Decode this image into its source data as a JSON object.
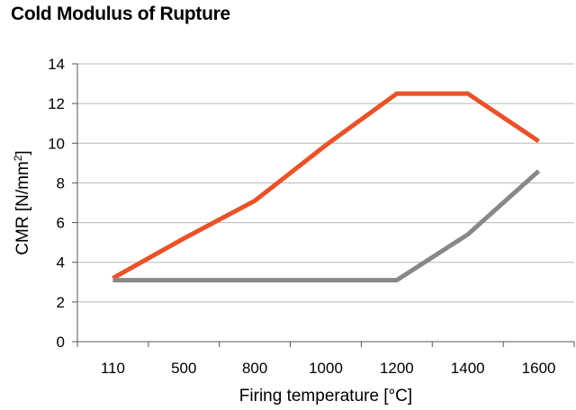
{
  "chart_data": {
    "type": "line",
    "title": "Cold Modulus of Rupture",
    "xlabel": "Firing temperature  [°C]",
    "ylabel_main": "CMR [N/mm",
    "ylabel_sup": "2",
    "ylabel_end": "]",
    "categories": [
      "110",
      "500",
      "800",
      "1000",
      "1200",
      "1400",
      "1600"
    ],
    "ylim": [
      0,
      14
    ],
    "yticks": [
      0,
      2,
      4,
      6,
      8,
      10,
      12,
      14
    ],
    "grid": true,
    "legend": "none",
    "series": [
      {
        "color": "#e8532a",
        "values": [
          3.2,
          5.2,
          7.1,
          9.9,
          12.5,
          12.5,
          10.1
        ]
      },
      {
        "color": "#888888",
        "values": [
          3.1,
          3.1,
          3.1,
          3.1,
          3.1,
          5.4,
          8.6
        ]
      }
    ]
  }
}
